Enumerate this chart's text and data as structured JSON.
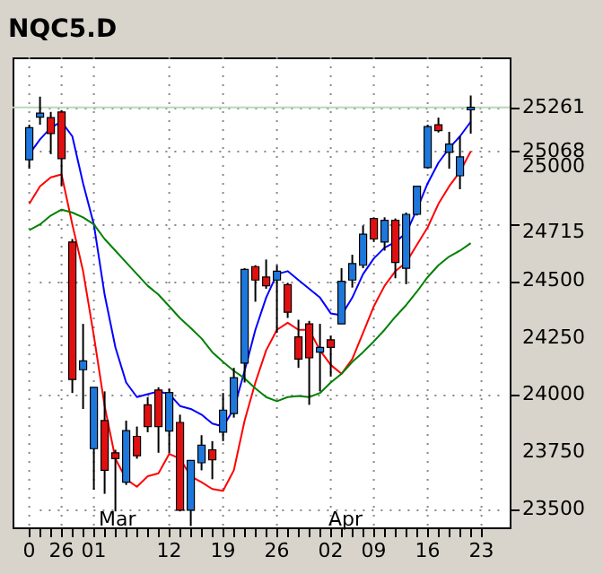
{
  "chart_data": {
    "type": "candlestick",
    "title": "NQC5.D",
    "categories": [
      "0",
      null,
      null,
      "26",
      null,
      null,
      "01",
      null,
      null,
      null,
      null,
      null,
      null,
      "12",
      null,
      null,
      null,
      null,
      "19",
      null,
      null,
      null,
      null,
      "26",
      null,
      null,
      null,
      null,
      "02",
      null,
      null,
      null,
      "09",
      null,
      null,
      null,
      null,
      "16",
      null,
      null,
      null,
      null,
      "23"
    ],
    "ohlc": [
      [
        25031,
        25185,
        24992,
        25172
      ],
      [
        25218,
        25308,
        25185,
        25236
      ],
      [
        25216,
        25241,
        25056,
        25146
      ],
      [
        25241,
        25249,
        24915,
        25036
      ],
      [
        24671,
        24684,
        24009,
        24068
      ],
      [
        24111,
        24312,
        23939,
        24150
      ],
      [
        23765,
        24034,
        23585,
        24034
      ],
      [
        23888,
        24016,
        23567,
        23670
      ],
      [
        23747,
        23760,
        23490,
        23721
      ],
      [
        23618,
        23888,
        23606,
        23844
      ],
      [
        23819,
        23862,
        23721,
        23734
      ],
      [
        23957,
        23991,
        23837,
        23862
      ],
      [
        24022,
        24034,
        23747,
        23862
      ],
      [
        23842,
        24029,
        23747,
        24011
      ],
      [
        23880,
        23914,
        23490,
        23495
      ],
      [
        23495,
        23713,
        23426,
        23713
      ],
      [
        23703,
        23824,
        23670,
        23780
      ],
      [
        23760,
        23798,
        23631,
        23716
      ],
      [
        23837,
        24009,
        23798,
        23934
      ],
      [
        23919,
        24119,
        23901,
        24076
      ],
      [
        24140,
        24556,
        24055,
        24551
      ],
      [
        24563,
        24569,
        24409,
        24504
      ],
      [
        24517,
        24594,
        24466,
        24479
      ],
      [
        24504,
        24569,
        24273,
        24543
      ],
      [
        24484,
        24492,
        24338,
        24363
      ],
      [
        24255,
        24330,
        24119,
        24158
      ],
      [
        24312,
        24325,
        23957,
        24163
      ],
      [
        24188,
        24312,
        24016,
        24209
      ],
      [
        24242,
        24260,
        24081,
        24209
      ],
      [
        24312,
        24556,
        24312,
        24499
      ],
      [
        24504,
        24615,
        24471,
        24576
      ],
      [
        24569,
        24743,
        24556,
        24705
      ],
      [
        24774,
        24779,
        24671,
        24684
      ],
      [
        24671,
        24779,
        24633,
        24766
      ],
      [
        24766,
        24774,
        24512,
        24581
      ],
      [
        24556,
        24800,
        24486,
        24792
      ],
      [
        24792,
        24915,
        24787,
        24915
      ],
      [
        24997,
        25185,
        24992,
        25177
      ],
      [
        25185,
        25216,
        25151,
        25159
      ],
      [
        25064,
        25154,
        24992,
        25100
      ],
      [
        24961,
        25134,
        24902,
        25044
      ],
      [
        25250,
        25313,
        25146,
        25261
      ],
      null
    ],
    "colors": [
      "#1e78dc",
      "#1e78dc",
      "#e01010",
      "#e01010",
      "#e01010",
      "#1e78dc",
      "#1e78dc",
      "#e01010",
      "#e01010",
      "#1e78dc",
      "#e01010",
      "#e01010",
      "#e01010",
      "#1e78dc",
      "#e01010",
      "#1e78dc",
      "#1e78dc",
      "#e01010",
      "#1e78dc",
      "#1e78dc",
      "#1e78dc",
      "#e01010",
      "#e01010",
      "#1e78dc",
      "#e01010",
      "#e01010",
      "#e01010",
      "#1e78dc",
      "#e01010",
      "#1e78dc",
      "#1e78dc",
      "#1e78dc",
      "#e01010",
      "#1e78dc",
      "#e01010",
      "#1e78dc",
      "#1e78dc",
      "#1e78dc",
      "#e01010",
      "#1e78dc",
      "#1e78dc",
      "#1e78dc",
      null
    ],
    "series": [
      {
        "type": "line",
        "color": "#0000ff",
        "values": [
          25056,
          25121,
          25172,
          25198,
          25134,
          24928,
          24748,
          24440,
          24209,
          24055,
          23991,
          24004,
          24016,
          24004,
          23952,
          23939,
          23914,
          23875,
          23862,
          23939,
          24106,
          24286,
          24427,
          24530,
          24543,
          24504,
          24466,
          24427,
          24358,
          24350,
          24427,
          24530,
          24599,
          24646,
          24671,
          24710,
          24813,
          24928,
          25018,
          25082,
          25134,
          25198,
          null
        ]
      },
      {
        "type": "line",
        "color": "#ff0000",
        "values": [
          24838,
          24915,
          24954,
          24967,
          24748,
          24543,
          24260,
          23952,
          23721,
          23631,
          23598,
          23644,
          23657,
          23742,
          23721,
          23644,
          23618,
          23588,
          23580,
          23670,
          23888,
          24055,
          24196,
          24286,
          24317,
          24286,
          24286,
          24196,
          24132,
          24093,
          24158,
          24273,
          24389,
          24479,
          24543,
          24581,
          24658,
          24735,
          24838,
          24915,
          24979,
          25068,
          null
        ]
      },
      {
        "type": "line",
        "color": "#008000",
        "values": [
          24723,
          24748,
          24787,
          24813,
          24800,
          24779,
          24748,
          24684,
          24633,
          24581,
          24530,
          24479,
          24440,
          24389,
          24337,
          24294,
          24248,
          24188,
          24145,
          24106,
          24073,
          24029,
          23991,
          23973,
          23991,
          23996,
          23991,
          24009,
          24055,
          24093,
          24145,
          24188,
          24235,
          24286,
          24343,
          24394,
          24453,
          24517,
          24569,
          24607,
          24633,
          24666,
          null
        ]
      }
    ],
    "ylim": [
      23420,
      25480
    ],
    "yticks": [
      23500,
      23750,
      24000,
      24250,
      24500,
      24715,
      {
        "value": 24750,
        "label": null
      },
      25000,
      25068,
      {
        "value": 25250,
        "label": null
      },
      25261
    ],
    "ref_lines": [
      {
        "axis": "y",
        "value": 25261,
        "color": "#b8d8b8"
      }
    ],
    "annotations": [
      "Mar",
      "Apr"
    ],
    "grid": true
  }
}
